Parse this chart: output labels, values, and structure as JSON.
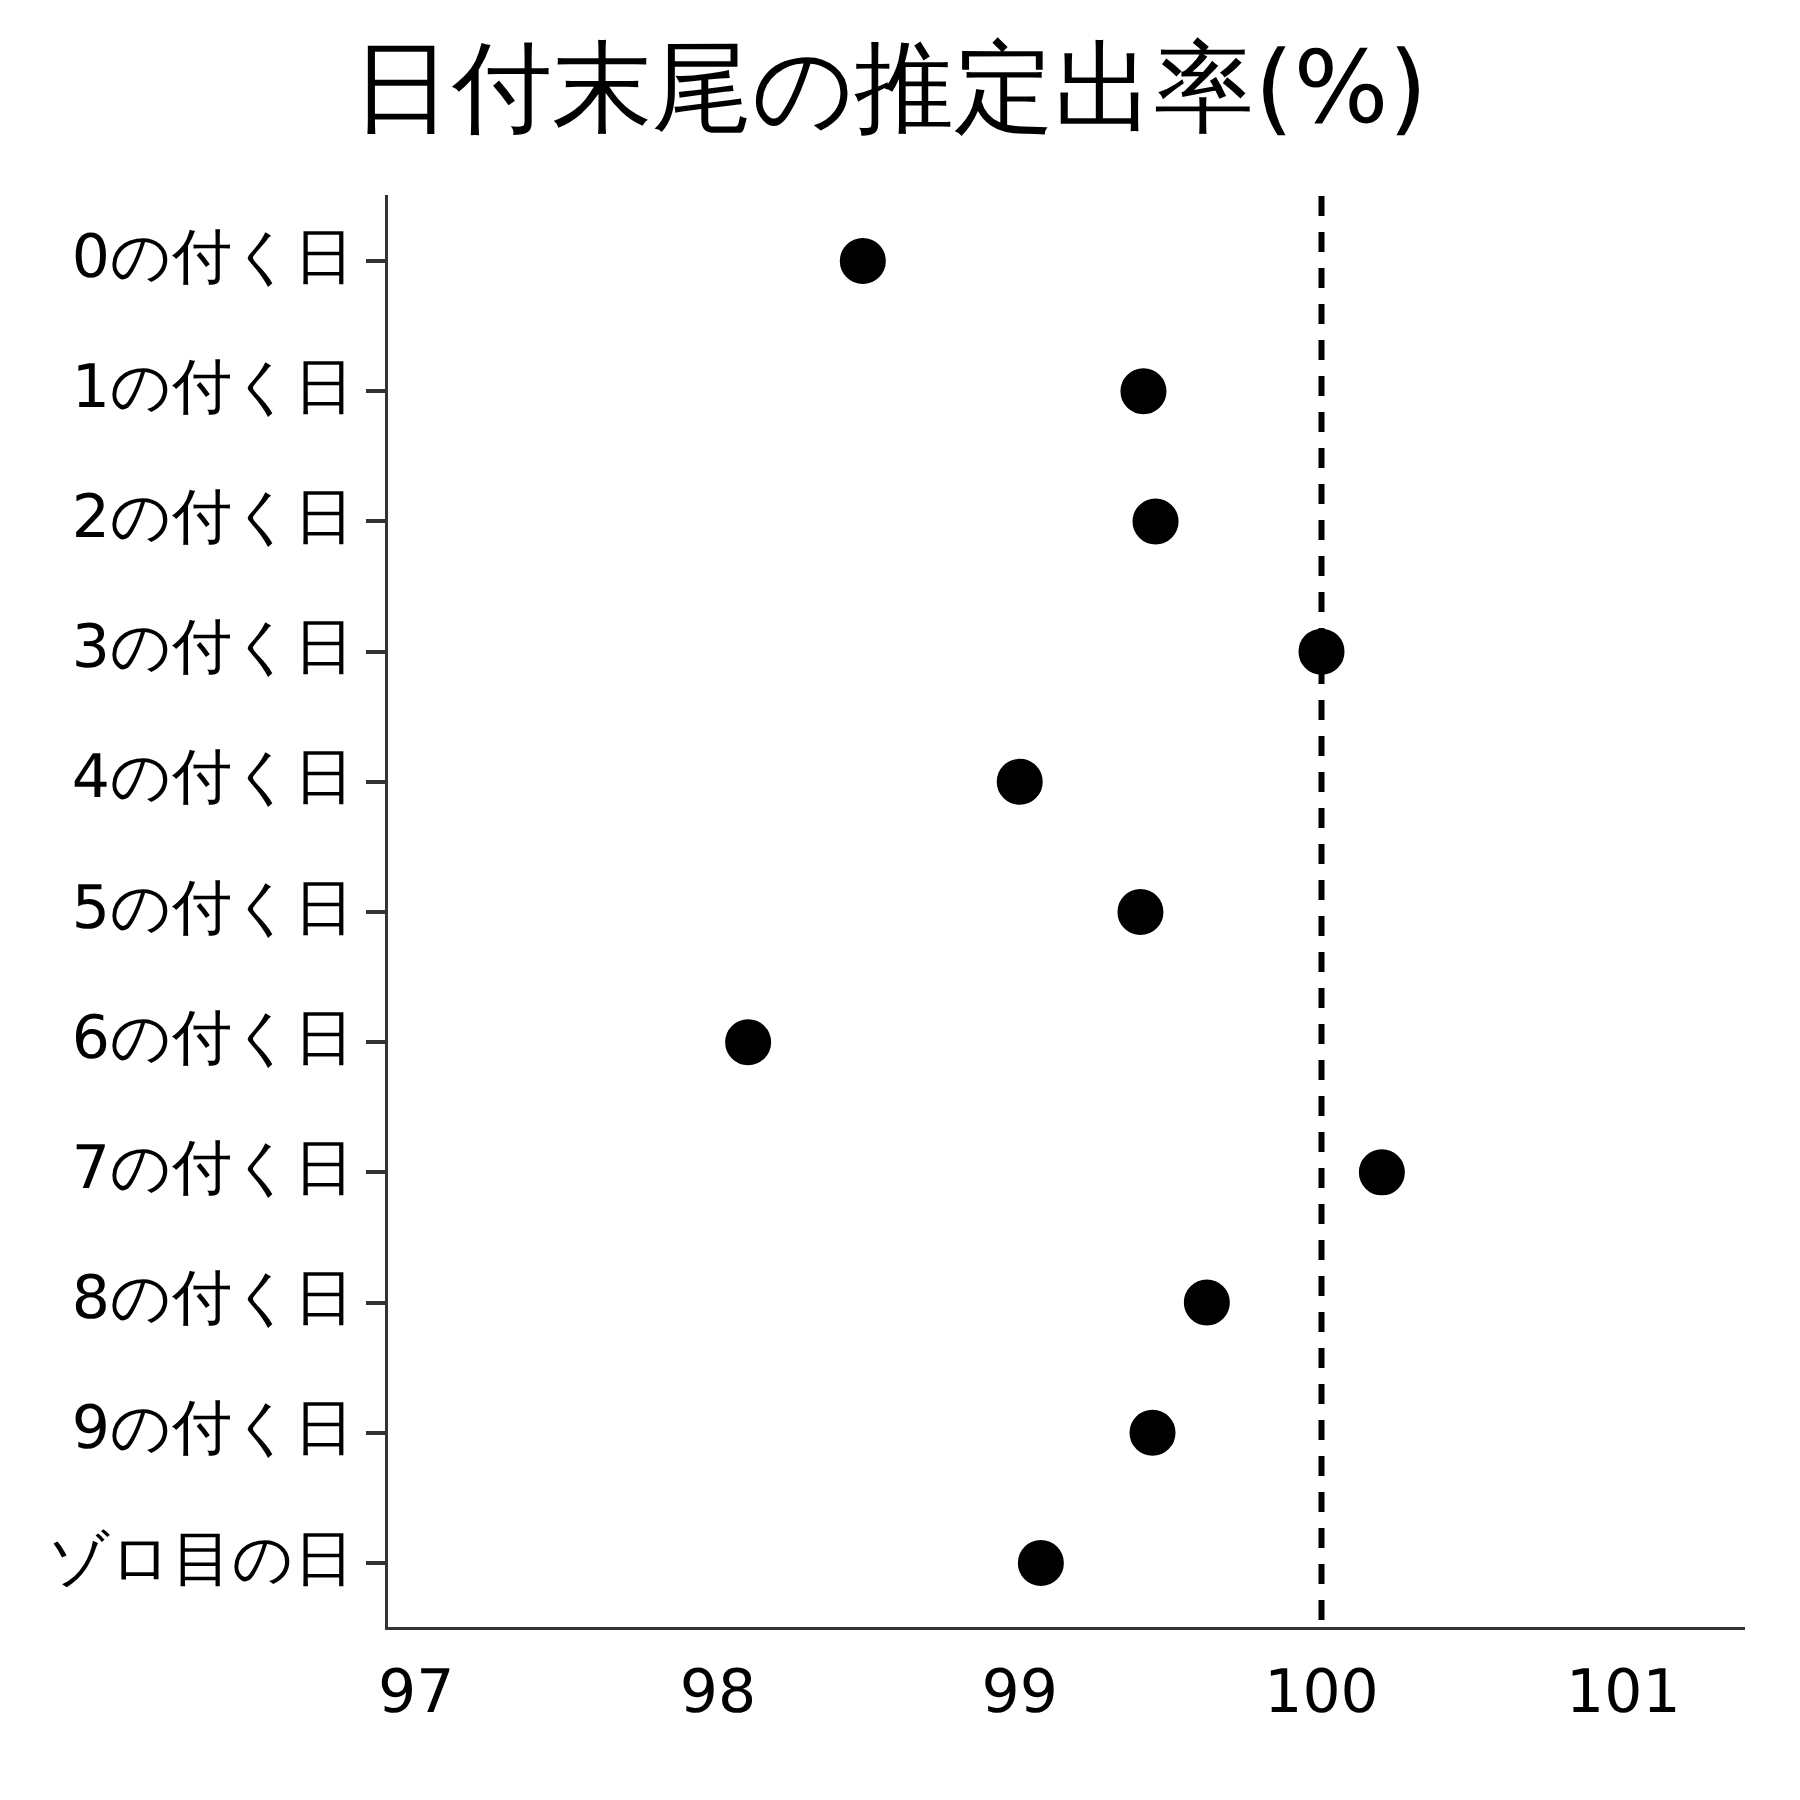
{
  "chart_data": {
    "type": "scatter",
    "title": "日付末尾の推定出率(%)",
    "orientation": "horizontal",
    "categories": [
      "0の付く日",
      "1の付く日",
      "2の付く日",
      "3の付く日",
      "4の付く日",
      "5の付く日",
      "6の付く日",
      "7の付く日",
      "8の付く日",
      "9の付く日",
      "ゾロ目の日"
    ],
    "series": [
      {
        "color": "#000000",
        "values": [
          98.48,
          99.41,
          99.45,
          100.0,
          99.0,
          99.4,
          98.1,
          100.2,
          99.62,
          99.44,
          99.07
        ]
      }
    ],
    "xlim": [
      96.9,
      101.4
    ],
    "xticks": [
      97,
      98,
      99,
      100,
      101
    ],
    "ref_lines": [
      {
        "axis": "x",
        "value": 100,
        "line_style": "dashed",
        "color": "#000000"
      }
    ],
    "grid": false,
    "legend": false,
    "marker": "circle"
  }
}
